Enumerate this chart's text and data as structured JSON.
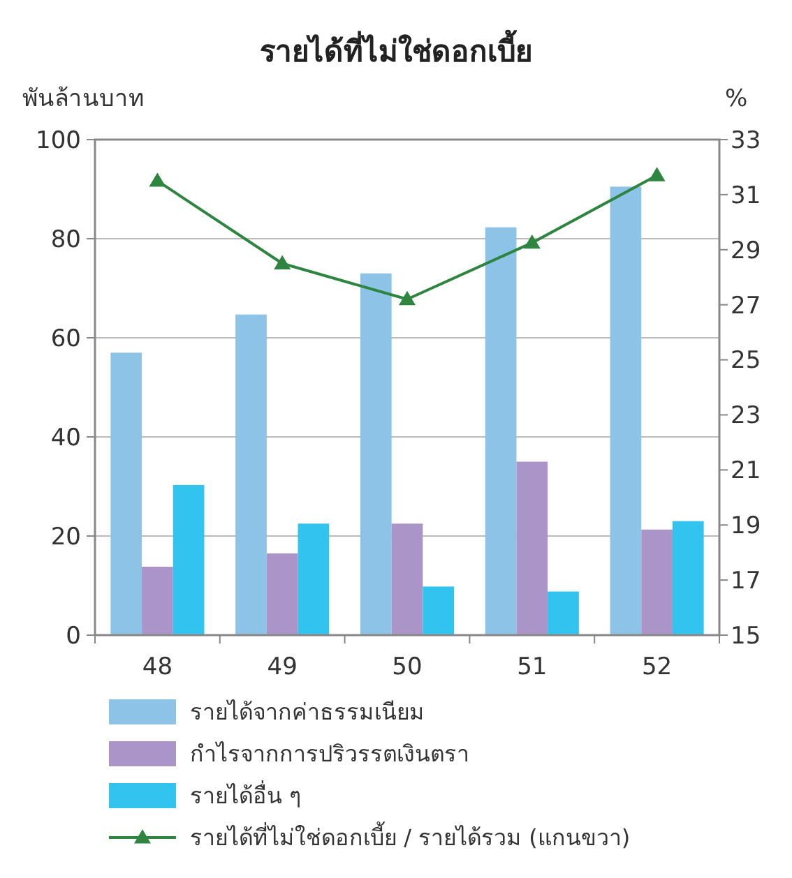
{
  "chart_data": {
    "type": "bar",
    "title": "รายได้ที่ไม่ใช่ดอกเบี้ย",
    "ylabel": "พันล้านบาท",
    "y2label": "%",
    "categories": [
      "48",
      "49",
      "50",
      "51",
      "52"
    ],
    "series": [
      {
        "name": "รายได้จากค่าธรรมเนียม",
        "color": "#8ec3e8",
        "values": [
          57,
          64.7,
          73,
          82.3,
          90.5
        ]
      },
      {
        "name": "กำไรจากการปริวรรตเงินตรา",
        "color": "#ab95c8",
        "values": [
          13.8,
          16.5,
          22.5,
          35,
          21.3
        ]
      },
      {
        "name": "รายได้อื่น ๆ",
        "color": "#33c3ef",
        "values": [
          30.3,
          22.5,
          9.8,
          8.8,
          23
        ]
      },
      {
        "name": "รายได้ที่ไม่ใช่ดอกเบี้ย / รายได้รวม (แกนขวา)",
        "color": "#2e8540",
        "type": "line",
        "axis": "y2",
        "marker": "triangle",
        "values": [
          31.5,
          28.5,
          27.2,
          29.25,
          31.7
        ]
      }
    ],
    "ylim": [
      0,
      100
    ],
    "yticks": [
      0,
      20,
      40,
      60,
      80,
      100
    ],
    "y2lim": [
      15,
      33
    ],
    "y2ticks": [
      15,
      17,
      19,
      21,
      23,
      25,
      27,
      29,
      31,
      33
    ],
    "grid": "y",
    "legend": "bottom"
  }
}
